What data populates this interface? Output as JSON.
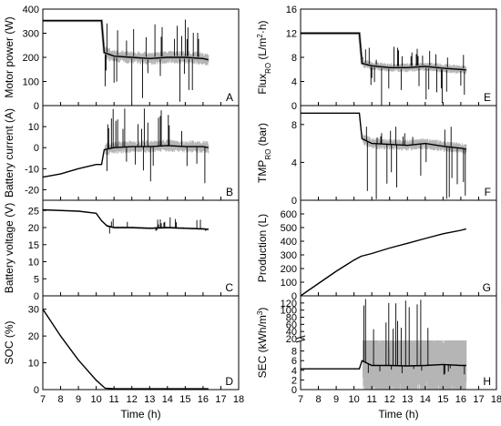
{
  "chart_data": [
    {
      "panel": "A",
      "type": "line",
      "ylabel": "Motor power (W)",
      "ylim": [
        0,
        400
      ],
      "yticks": [
        0,
        100,
        200,
        300,
        400
      ],
      "xlim": [
        7,
        18
      ],
      "grid": false,
      "xticks": [
        7,
        8,
        9,
        10,
        11,
        12,
        13,
        14,
        15,
        16,
        17,
        18
      ],
      "series": [
        {
          "values": [
            [
              7,
              352
            ],
            [
              10.3,
              352
            ],
            [
              10.45,
              220
            ],
            [
              11,
              205
            ],
            [
              12,
              200
            ],
            [
              13,
              195
            ],
            [
              14,
              200
            ],
            [
              15,
              200
            ],
            [
              16,
              195
            ],
            [
              16.3,
              190
            ]
          ]
        }
      ],
      "spikes": {
        "x_range": [
          10.5,
          16.3
        ],
        "min": 0,
        "max": 360
      }
    },
    {
      "panel": "B",
      "type": "line",
      "ylabel": "Battery current (A)",
      "ylim": [
        -25,
        20
      ],
      "yticks": [
        -20,
        -10,
        0,
        10
      ],
      "xlim": [
        7,
        18
      ],
      "grid": false,
      "xticks": [
        7,
        8,
        9,
        10,
        11,
        12,
        13,
        14,
        15,
        16,
        17,
        18
      ],
      "series": [
        {
          "values": [
            [
              7,
              -14
            ],
            [
              8,
              -12.5
            ],
            [
              9,
              -10
            ],
            [
              10,
              -8
            ],
            [
              10.3,
              -8
            ],
            [
              10.45,
              -1
            ],
            [
              11,
              0
            ],
            [
              12,
              0.5
            ],
            [
              13,
              0.5
            ],
            [
              14,
              1
            ],
            [
              15,
              0.5
            ],
            [
              16,
              0.5
            ],
            [
              16.3,
              0
            ]
          ]
        }
      ],
      "spikes": {
        "x_range": [
          10.5,
          16.3
        ],
        "min": -21,
        "max": 19
      }
    },
    {
      "panel": "C",
      "type": "line",
      "ylabel": "Battery voltage (V)",
      "ylim": [
        0,
        28
      ],
      "yticks": [
        0,
        5,
        10,
        15,
        20,
        25
      ],
      "xlim": [
        7,
        18
      ],
      "grid": false,
      "xticks": [
        7,
        8,
        9,
        10,
        11,
        12,
        13,
        14,
        15,
        16,
        17,
        18
      ],
      "series": [
        {
          "values": [
            [
              7,
              25.2
            ],
            [
              9,
              24.8
            ],
            [
              10,
              24.2
            ],
            [
              10.3,
              22
            ],
            [
              10.6,
              20.5
            ],
            [
              11,
              20
            ],
            [
              12,
              20
            ],
            [
              13,
              19.8
            ],
            [
              14,
              20
            ],
            [
              15,
              19.8
            ],
            [
              16,
              19.6
            ],
            [
              16.3,
              19.5
            ]
          ]
        }
      ],
      "spikes": {
        "x_range": [
          10.5,
          16.3
        ],
        "min": 18,
        "max": 23
      }
    },
    {
      "panel": "D",
      "type": "line",
      "ylabel": "SOC (%)",
      "ylim": [
        0,
        35
      ],
      "yticks": [
        0,
        10,
        20,
        30
      ],
      "xlim": [
        7,
        18
      ],
      "grid": false,
      "xticks": [
        7,
        8,
        9,
        10,
        11,
        12,
        13,
        14,
        15,
        16,
        17,
        18
      ],
      "xticklabels": [
        "7",
        "8",
        "9",
        "10",
        "11",
        "12",
        "13",
        "14",
        "15",
        "16",
        "17",
        "18"
      ],
      "xlabel": "Time (h)",
      "series": [
        {
          "values": [
            [
              7,
              30
            ],
            [
              7.5,
              25
            ],
            [
              8,
              20
            ],
            [
              9,
              11
            ],
            [
              10,
              3.5
            ],
            [
              10.5,
              0.5
            ],
            [
              11,
              0.3
            ],
            [
              16.3,
              0.3
            ]
          ]
        }
      ]
    },
    {
      "panel": "E",
      "type": "line",
      "ylabel": "Flux",
      "ylabel_sub": "RO",
      "ylabel_unit": "(L/m",
      "ylabel_sup": "2",
      "ylabel_tail": "·h)",
      "ylim": [
        0,
        16
      ],
      "yticks": [
        0,
        4,
        8,
        12,
        16
      ],
      "xlim": [
        7,
        18
      ],
      "grid": false,
      "xticks": [
        7,
        8,
        9,
        10,
        11,
        12,
        13,
        14,
        15,
        16,
        17,
        18
      ],
      "series": [
        {
          "values": [
            [
              7,
              12
            ],
            [
              10.3,
              12
            ],
            [
              10.45,
              7
            ],
            [
              11,
              6.6
            ],
            [
              12,
              6.3
            ],
            [
              13,
              6.3
            ],
            [
              14,
              6.5
            ],
            [
              15,
              6.2
            ],
            [
              16,
              6
            ],
            [
              16.3,
              5.9
            ]
          ]
        }
      ],
      "spikes": {
        "x_range": [
          10.5,
          16.3
        ],
        "min": 0,
        "max": 10
      }
    },
    {
      "panel": "F",
      "type": "line",
      "ylabel": "TMP",
      "ylabel_sub": "RO",
      "ylabel_unit": "(bar)",
      "ylim": [
        0,
        10
      ],
      "yticks": [
        0,
        4,
        8
      ],
      "xlim": [
        7,
        18
      ],
      "grid": false,
      "xticks": [
        7,
        8,
        9,
        10,
        11,
        12,
        13,
        14,
        15,
        16,
        17,
        18
      ],
      "series": [
        {
          "values": [
            [
              7,
              9.2
            ],
            [
              10.3,
              9.2
            ],
            [
              10.45,
              6.5
            ],
            [
              11,
              6
            ],
            [
              12,
              5.9
            ],
            [
              13,
              5.8
            ],
            [
              14,
              6
            ],
            [
              15,
              5.7
            ],
            [
              16,
              5.5
            ],
            [
              16.3,
              5.4
            ]
          ]
        }
      ],
      "spikes": {
        "x_range": [
          10.5,
          16.3
        ],
        "min": 0,
        "max": 8
      }
    },
    {
      "panel": "G",
      "type": "line",
      "ylabel": "Production (L)",
      "ylim": [
        0,
        700
      ],
      "yticks": [
        0,
        100,
        200,
        300,
        400,
        500,
        600
      ],
      "xlim": [
        7,
        18
      ],
      "grid": false,
      "xticks": [
        7,
        8,
        9,
        10,
        11,
        12,
        13,
        14,
        15,
        16,
        17,
        18
      ],
      "series": [
        {
          "values": [
            [
              7,
              0
            ],
            [
              8,
              90
            ],
            [
              9,
              180
            ],
            [
              10,
              262
            ],
            [
              10.4,
              290
            ],
            [
              11,
              310
            ],
            [
              12,
              350
            ],
            [
              13,
              385
            ],
            [
              14,
              420
            ],
            [
              15,
              455
            ],
            [
              16,
              480
            ],
            [
              16.3,
              490
            ]
          ]
        }
      ]
    },
    {
      "panel": "H",
      "type": "line",
      "ylabel": "SEC (kWh/m",
      "ylabel_sup": "3",
      "ylabel_tail": ")",
      "broken_axis": true,
      "ylim_lower": [
        0,
        10
      ],
      "yticks_lower": [
        0,
        2,
        4,
        6,
        8
      ],
      "ylim_upper": [
        20,
        140
      ],
      "yticks_upper": [
        20,
        40,
        60,
        80,
        100,
        120
      ],
      "xlim": [
        7,
        18
      ],
      "grid": false,
      "xticks": [
        7,
        8,
        9,
        10,
        11,
        12,
        13,
        14,
        15,
        16,
        17,
        18
      ],
      "xticklabels": [
        "7",
        "8",
        "9",
        "10",
        "11",
        "12",
        "13",
        "14",
        "15",
        "16",
        "17",
        "18"
      ],
      "xlabel": "Time (h)",
      "series": [
        {
          "values": [
            [
              7,
              4.3
            ],
            [
              10.3,
              4.3
            ],
            [
              10.45,
              6
            ],
            [
              11,
              5
            ],
            [
              12,
              5
            ],
            [
              13,
              4.9
            ],
            [
              14,
              5
            ],
            [
              15,
              5.2
            ],
            [
              16,
              5
            ],
            [
              16.3,
              5
            ]
          ]
        }
      ],
      "spikes": {
        "x_range": [
          10.5,
          16.3
        ],
        "min": 3,
        "max": 135
      }
    }
  ]
}
